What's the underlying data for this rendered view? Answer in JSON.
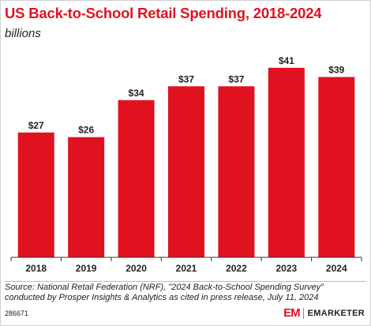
{
  "header": {
    "title": "US Back-to-School Retail Spending, 2018-2024",
    "subtitle": "billions"
  },
  "chart_data": {
    "type": "bar",
    "title": "US Back-to-School Retail Spending, 2018-2024",
    "subtitle": "billions",
    "categories": [
      "2018",
      "2019",
      "2020",
      "2021",
      "2022",
      "2023",
      "2024"
    ],
    "values": [
      27,
      26,
      34,
      37,
      37,
      41,
      39
    ],
    "data_labels": [
      "$27",
      "$26",
      "$34",
      "$37",
      "$37",
      "$41",
      "$39"
    ],
    "ylim": [
      0,
      42
    ],
    "grid": false,
    "bar_color": "#e0121f"
  },
  "footer": {
    "source": "Source: National Retail Federation (NRF), \"2024 Back-to-School Spending Survey\" conducted by Prosper Insights & Analytics as cited in press release, July 11, 2024",
    "chart_id": "286671",
    "brand_mark": "EM",
    "brand_name": "EMARKETER"
  },
  "colors": {
    "accent": "#e0121f",
    "text": "#222222",
    "axis": "#333333"
  }
}
